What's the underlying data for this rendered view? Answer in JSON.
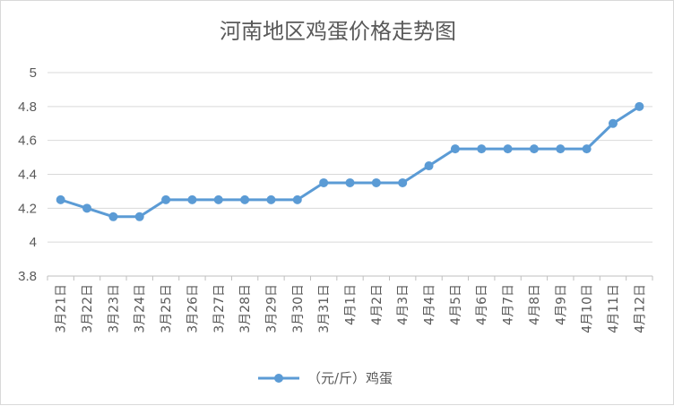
{
  "chart_data": {
    "type": "line",
    "title": "河南地区鸡蛋价格走势图",
    "xlabel": "",
    "ylabel": "",
    "ylim": [
      3.8,
      5
    ],
    "yticks": [
      3.8,
      4,
      4.2,
      4.4,
      4.6,
      4.8,
      5
    ],
    "ytick_labels": [
      "3.8",
      "4",
      "4.2",
      "4.4",
      "4.6",
      "4.8",
      "5"
    ],
    "grid": true,
    "legend_position": "bottom",
    "categories": [
      "3月21日",
      "3月22日",
      "3月23日",
      "3月24日",
      "3月25日",
      "3月26日",
      "3月27日",
      "3月28日",
      "3月29日",
      "3月30日",
      "3月31日",
      "4月1日",
      "4月2日",
      "4月3日",
      "4月4日",
      "4月5日",
      "4月6日",
      "4月7日",
      "4月8日",
      "4月9日",
      "4月10日",
      "4月11日",
      "4月12日"
    ],
    "series": [
      {
        "name": "（元/斤）鸡蛋",
        "color": "#5b9bd5",
        "values": [
          4.25,
          4.2,
          4.15,
          4.15,
          4.25,
          4.25,
          4.25,
          4.25,
          4.25,
          4.25,
          4.35,
          4.35,
          4.35,
          4.35,
          4.45,
          4.55,
          4.55,
          4.55,
          4.55,
          4.55,
          4.55,
          4.7,
          4.8
        ]
      }
    ]
  }
}
